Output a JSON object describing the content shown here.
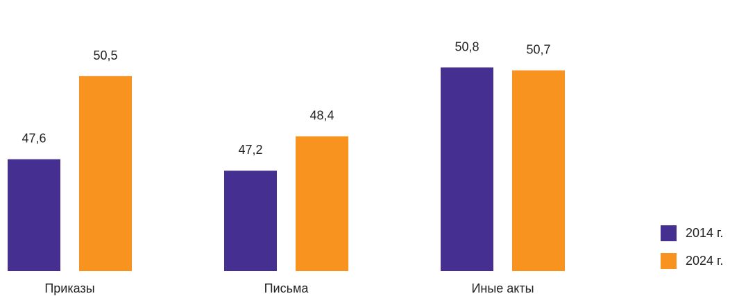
{
  "chart_data": {
    "type": "bar",
    "categories": [
      "Приказы",
      "Письма",
      "Иные акты"
    ],
    "series": [
      {
        "name": "2014 г.",
        "color": "#452f91",
        "values": [
          47.6,
          47.2,
          50.8
        ],
        "labels": [
          "47,6",
          "47,2",
          "50,8"
        ]
      },
      {
        "name": "2024 г.",
        "color": "#f7931e",
        "values": [
          50.5,
          48.4,
          50.7
        ],
        "labels": [
          "50,5",
          "48,4",
          "50,7"
        ]
      }
    ],
    "title": "",
    "xlabel": "",
    "ylabel": "",
    "ylim": [
      43.7,
      51.8
    ],
    "grid": false,
    "legend_position": "bottom-right"
  }
}
